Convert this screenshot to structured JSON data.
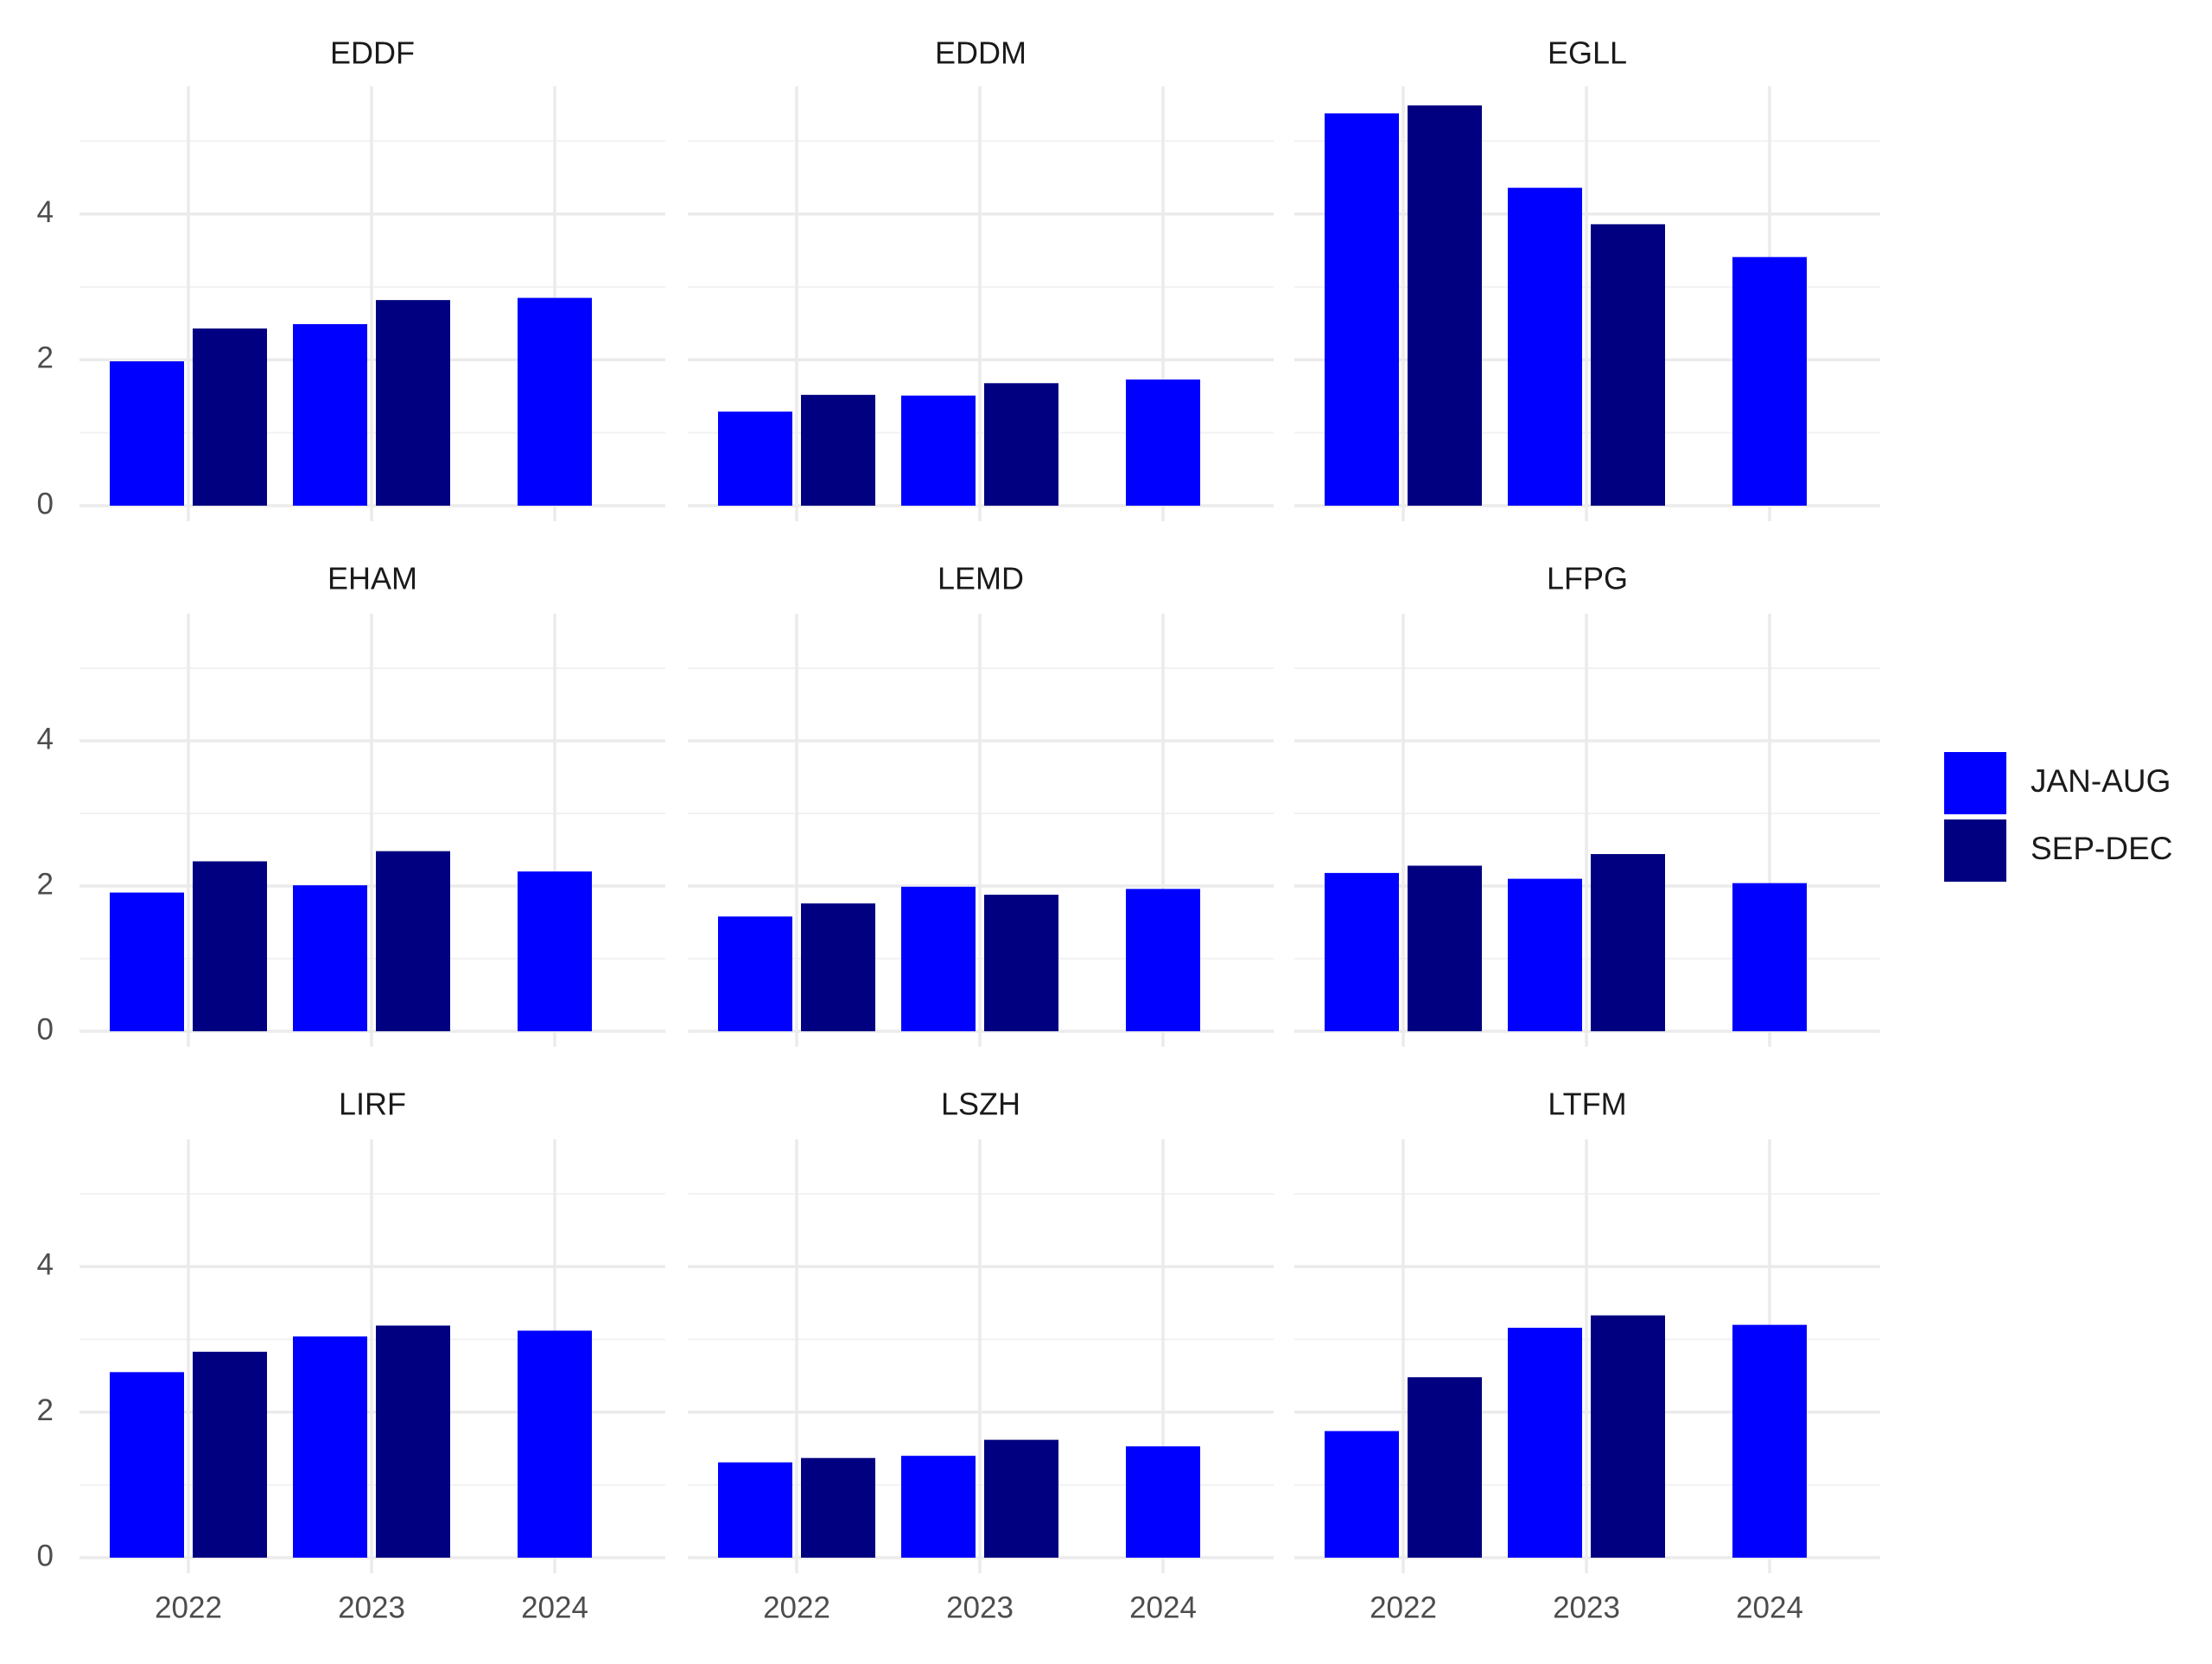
{
  "chart_data": {
    "type": "bar",
    "layout": "facet-grid-3x3",
    "categories": [
      "2022",
      "2023",
      "2024"
    ],
    "y_ticks": [
      0,
      2,
      4
    ],
    "ylim": [
      0,
      5.75
    ],
    "grid": true,
    "legend_position": "right",
    "colors": {
      "JAN-AUG": "#0000ff",
      "SEP-DEC": "#000080"
    },
    "legend": [
      {
        "label": "JAN-AUG",
        "color": "#0000ff"
      },
      {
        "label": "SEP-DEC",
        "color": "#000080"
      }
    ],
    "panels": [
      {
        "title": "EDDF",
        "series": [
          {
            "name": "JAN-AUG",
            "values": [
              1.98,
              2.49,
              2.85
            ]
          },
          {
            "name": "SEP-DEC",
            "values": [
              2.43,
              2.82,
              null
            ]
          }
        ]
      },
      {
        "title": "EDDM",
        "series": [
          {
            "name": "JAN-AUG",
            "values": [
              1.29,
              1.51,
              1.73
            ]
          },
          {
            "name": "SEP-DEC",
            "values": [
              1.52,
              1.68,
              null
            ]
          }
        ]
      },
      {
        "title": "EGLL",
        "series": [
          {
            "name": "JAN-AUG",
            "values": [
              5.38,
              4.36,
              3.41
            ]
          },
          {
            "name": "SEP-DEC",
            "values": [
              5.49,
              3.86,
              null
            ]
          }
        ]
      },
      {
        "title": "EHAM",
        "series": [
          {
            "name": "JAN-AUG",
            "values": [
              1.91,
              2.01,
              2.2
            ]
          },
          {
            "name": "SEP-DEC",
            "values": [
              2.34,
              2.48,
              null
            ]
          }
        ]
      },
      {
        "title": "LEMD",
        "series": [
          {
            "name": "JAN-AUG",
            "values": [
              1.58,
              1.99,
              1.96
            ]
          },
          {
            "name": "SEP-DEC",
            "values": [
              1.76,
              1.88,
              null
            ]
          }
        ]
      },
      {
        "title": "LFPG",
        "series": [
          {
            "name": "JAN-AUG",
            "values": [
              2.18,
              2.1,
              2.04
            ]
          },
          {
            "name": "SEP-DEC",
            "values": [
              2.28,
              2.44,
              null
            ]
          }
        ]
      },
      {
        "title": "LIRF",
        "series": [
          {
            "name": "JAN-AUG",
            "values": [
              2.55,
              3.04,
              3.12
            ]
          },
          {
            "name": "SEP-DEC",
            "values": [
              2.83,
              3.19,
              null
            ]
          }
        ]
      },
      {
        "title": "LSZH",
        "series": [
          {
            "name": "JAN-AUG",
            "values": [
              1.31,
              1.4,
              1.53
            ]
          },
          {
            "name": "SEP-DEC",
            "values": [
              1.37,
              1.62,
              null
            ]
          }
        ]
      },
      {
        "title": "LTFM",
        "series": [
          {
            "name": "JAN-AUG",
            "values": [
              1.74,
              3.16,
              3.2
            ]
          },
          {
            "name": "SEP-DEC",
            "values": [
              2.48,
              3.33,
              null
            ]
          }
        ]
      }
    ]
  }
}
